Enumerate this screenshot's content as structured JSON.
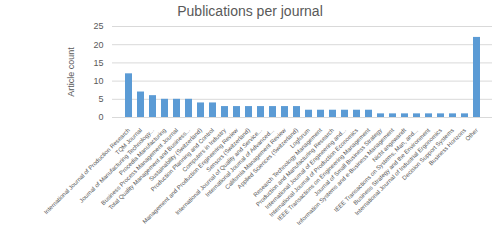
{
  "chart_data": {
    "type": "bar",
    "title": "Publications per journal",
    "y_label": "Article count",
    "categories": [
      "International Journal of Production Research",
      "TQM Journal",
      "Journal of Manufacturing Technology...",
      "Procedia Manufacturing",
      "Business Process Management Journal",
      "Total Quality Management and Business...",
      "Sustainability (Switzerland)",
      "Production Planning and Control",
      "Computers in Industry",
      "Management and Production Engineering Review",
      "Sensors (Switzerland)",
      "International Journal of Quality and Service...",
      "International Journal of Advanced...",
      "California Management Review",
      "Applied Sciences (Switzerland)",
      "Logforum",
      "Research Technology Management",
      "Production and Manufacturing Research",
      "International Journal of Engineering and...",
      "International Journal of Production Economics",
      "IEEE Transactions on Engineering Management",
      "Journal of Small Business Strategy",
      "Information Systems and e-Business Management",
      "Nicht angewandt",
      "IEEE Transactions on Systems, Man, and...",
      "Business Strategy and the Environment",
      "International Journal of Industrial Ergonomics",
      "Decision Support Systems",
      "Business Horizons",
      "Other"
    ],
    "values": [
      12,
      7,
      6,
      5,
      5,
      5,
      4,
      4,
      3,
      3,
      3,
      3,
      3,
      3,
      3,
      2,
      2,
      2,
      2,
      2,
      2,
      1,
      1,
      1,
      1,
      1,
      1,
      1,
      1,
      22
    ],
    "color": "#5b9bd5",
    "ylim": [
      0,
      25
    ],
    "yticks": [
      0,
      5,
      10,
      15,
      20,
      25
    ],
    "grid": true
  }
}
